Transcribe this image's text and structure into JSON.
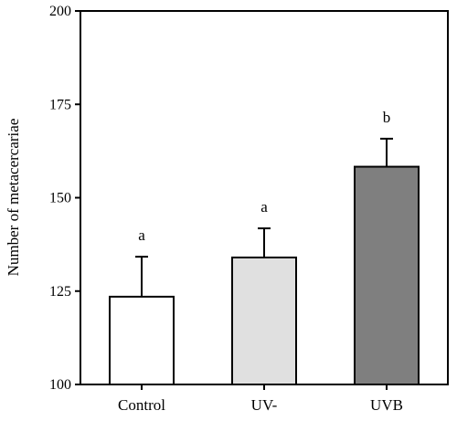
{
  "chart_data": {
    "type": "bar",
    "title": "",
    "xlabel": "",
    "ylabel": "Number of metacercariae",
    "ylim": [
      100,
      200
    ],
    "yticks": [
      100,
      125,
      150,
      175,
      200
    ],
    "grid": false,
    "categories": [
      "Control",
      "UV-",
      "UVB"
    ],
    "values": [
      123.5,
      134,
      158.3
    ],
    "errors": [
      10.7,
      7.8,
      7.5
    ],
    "significance_labels": [
      "a",
      "a",
      "b"
    ],
    "colors": [
      "#ffffff",
      "#e0e0e0",
      "#7f7f7f"
    ]
  }
}
